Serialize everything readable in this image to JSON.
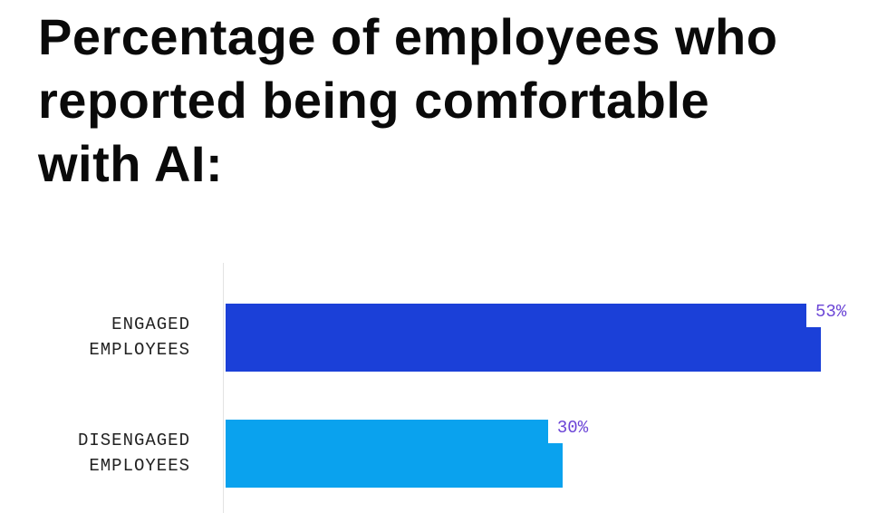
{
  "chart_data": {
    "type": "bar",
    "orientation": "horizontal",
    "title": "Percentage of employees who reported being comfortable with AI:",
    "categories": [
      "ENGAGED EMPLOYEES",
      "DISENGAGED EMPLOYEES"
    ],
    "values": [
      53,
      30
    ],
    "value_labels": [
      "53%",
      "30%"
    ],
    "colors": [
      "#1b40d8",
      "#0aa2ee"
    ],
    "xlim": [
      0,
      58
    ]
  }
}
